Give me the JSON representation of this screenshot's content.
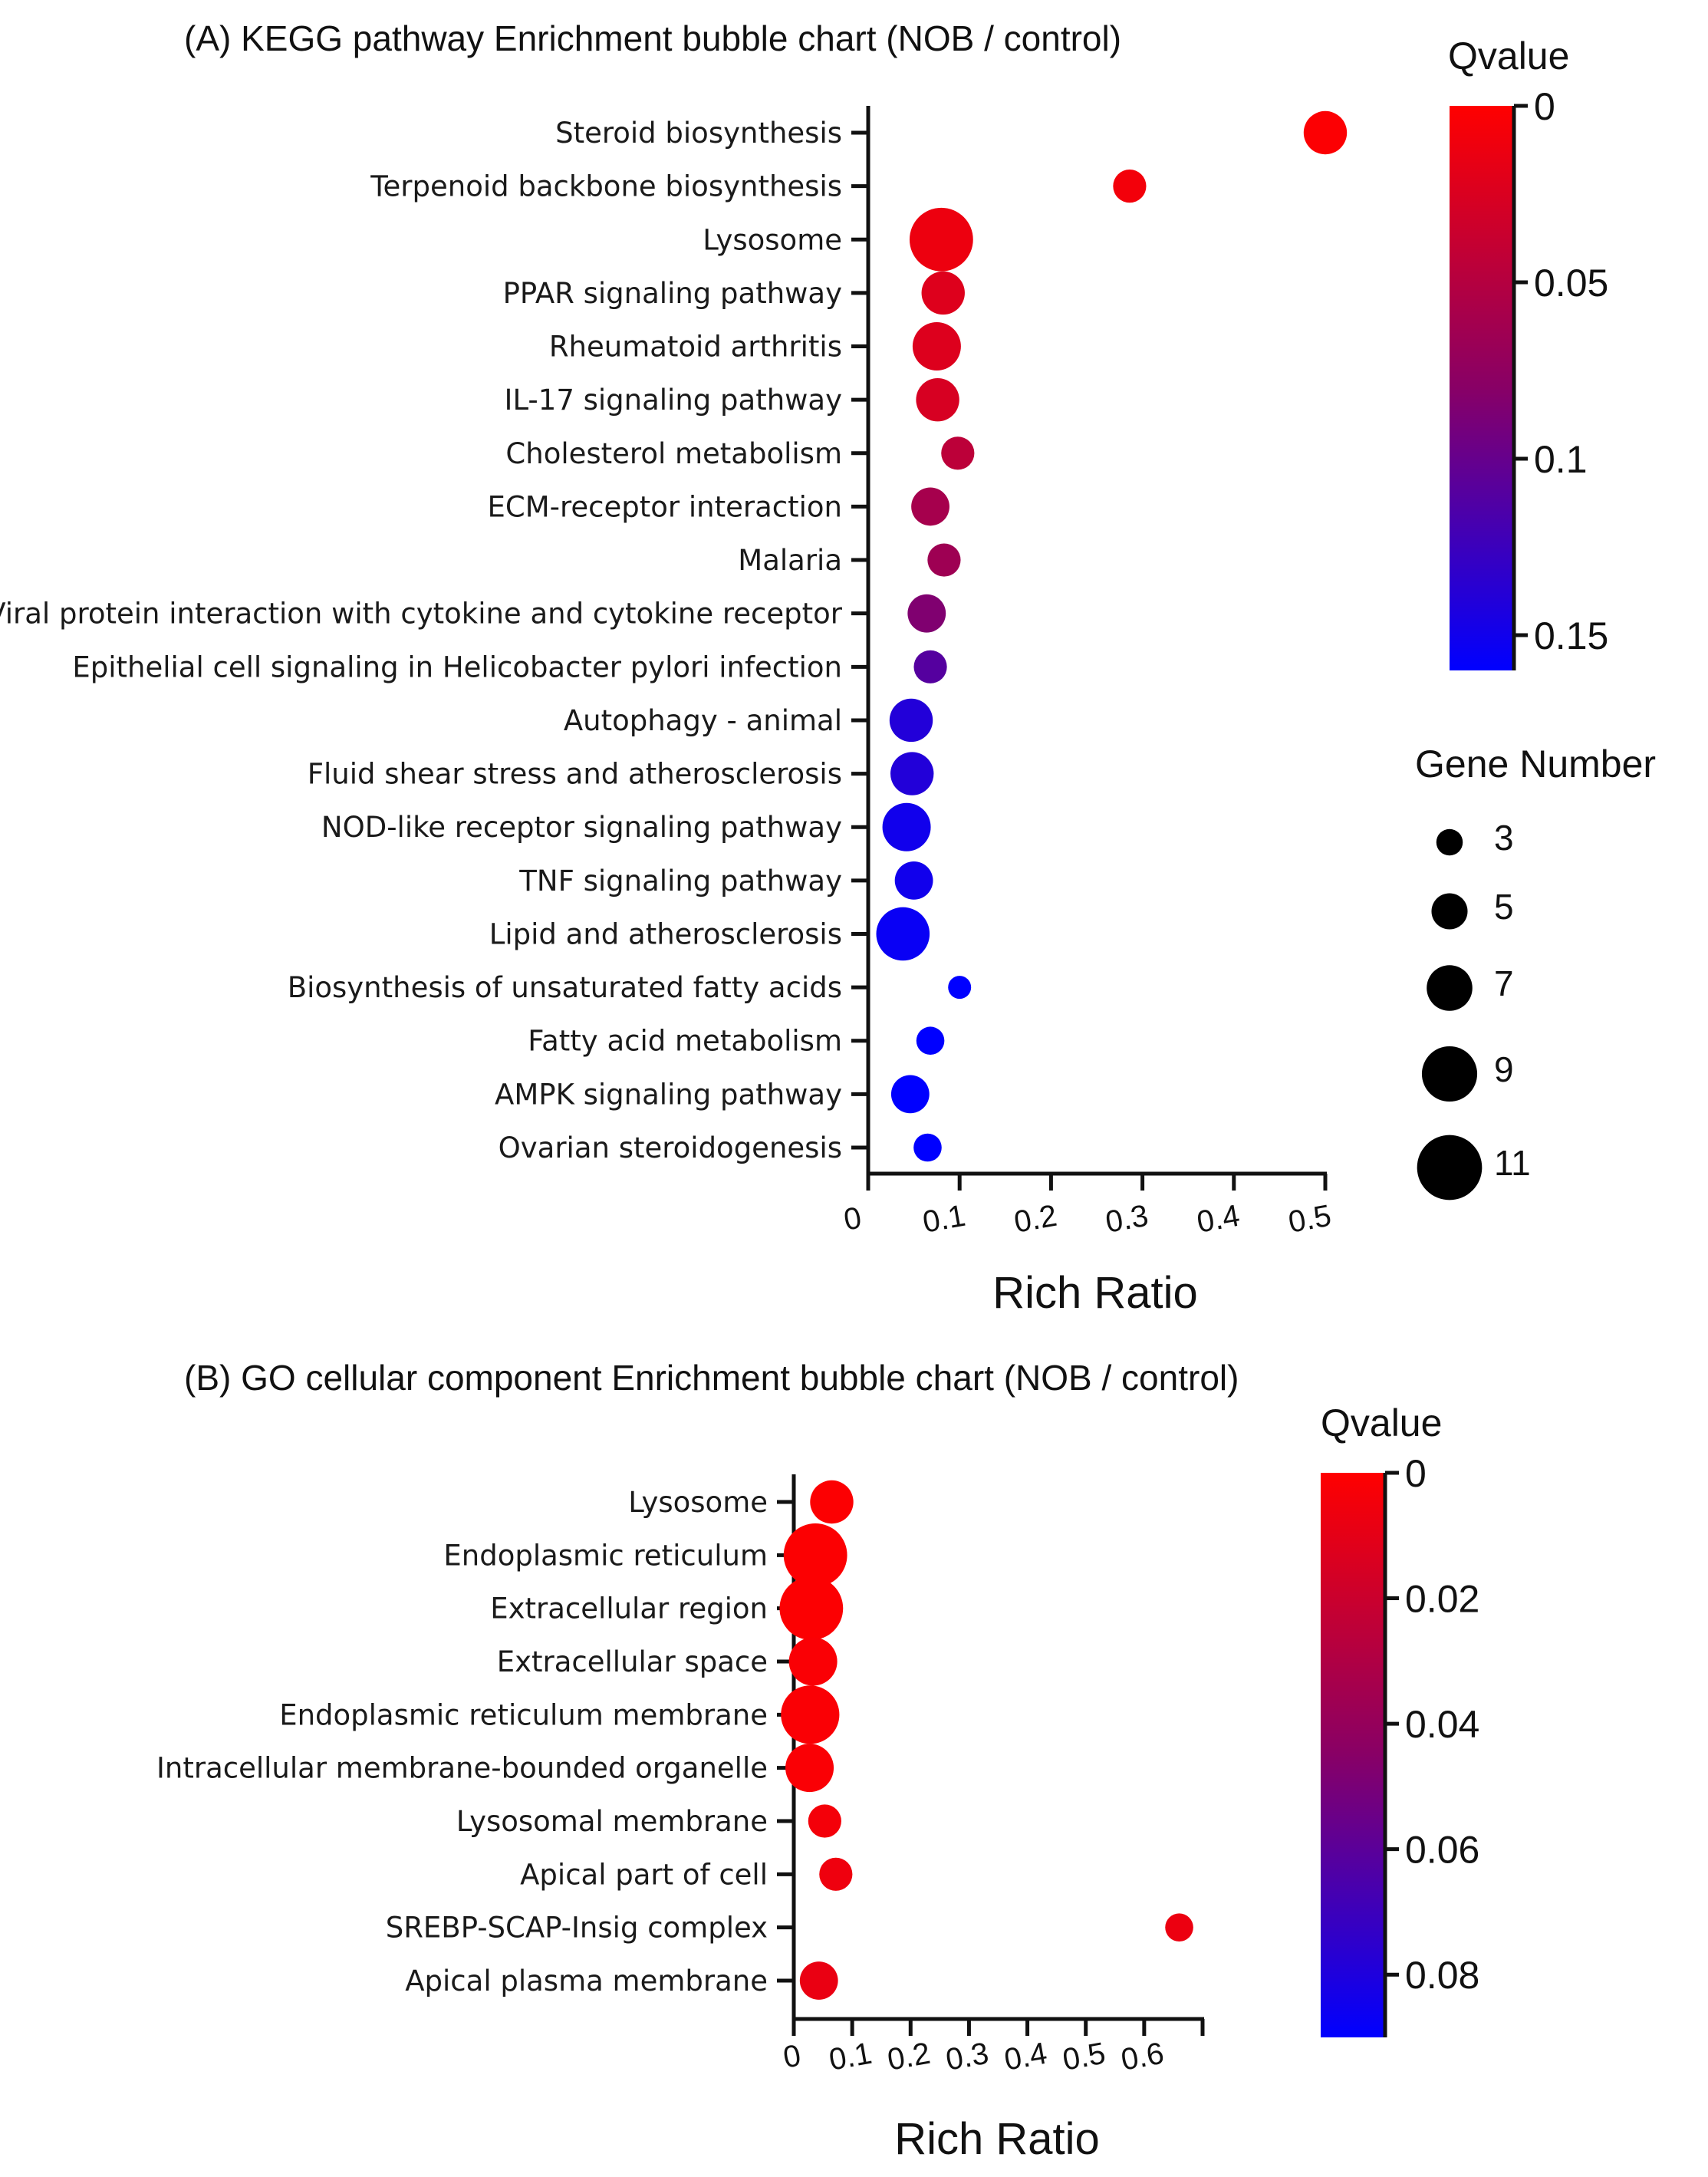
{
  "chart_data": [
    {
      "type": "scatter",
      "subtype": "bubble",
      "title": "(A) KEGG pathway Enrichment bubble chart (NOB / control)",
      "xlabel": "Rich Ratio",
      "ylabel": "",
      "xlim": [
        0,
        0.5
      ],
      "xticks": [
        "0",
        "0.1",
        "0.2",
        "0.3",
        "0.4",
        "0.5"
      ],
      "categories": [
        "Steroid biosynthesis",
        "Terpenoid backbone biosynthesis",
        "Lysosome",
        "PPAR signaling pathway",
        "Rheumatoid arthritis",
        "IL-17 signaling pathway",
        "Cholesterol metabolism",
        "ECM-receptor interaction",
        "Malaria",
        "Viral protein interaction with cytokine and cytokine receptor",
        "Epithelial cell signaling in Helicobacter pylori infection",
        "Autophagy - animal",
        "Fluid shear stress and atherosclerosis",
        "NOD-like receptor signaling pathway",
        "TNF signaling pathway",
        "Lipid and atherosclerosis",
        "Biosynthesis of unsaturated fatty acids",
        "Fatty acid metabolism",
        "AMPK signaling pathway",
        "Ovarian steroidogenesis"
      ],
      "rich_ratio": [
        0.5,
        0.286,
        0.08,
        0.082,
        0.075,
        0.076,
        0.098,
        0.068,
        0.083,
        0.064,
        0.068,
        0.047,
        0.048,
        0.042,
        0.05,
        0.038,
        0.1,
        0.068,
        0.046,
        0.065
      ],
      "qvalue": [
        0.002,
        0.008,
        0.012,
        0.022,
        0.023,
        0.027,
        0.045,
        0.06,
        0.065,
        0.085,
        0.11,
        0.14,
        0.14,
        0.15,
        0.15,
        0.155,
        0.16,
        0.16,
        0.16,
        0.16
      ],
      "gene_number": [
        7,
        5,
        11,
        7,
        8,
        7,
        5,
        6,
        5,
        6,
        5,
        7,
        7,
        8,
        6,
        9,
        3,
        4,
        6,
        4
      ],
      "colorbar": {
        "title": "Qvalue",
        "range": [
          0,
          0.16
        ],
        "ticks": [
          "0",
          "0.05",
          "0.1",
          "0.15"
        ],
        "tick_values": [
          0,
          0.05,
          0.1,
          0.15
        ],
        "color_low": "#ff0000",
        "color_high": "#0000ff"
      },
      "size_legend": {
        "title": "Gene Number",
        "values": [
          3,
          5,
          7,
          9,
          11
        ],
        "labels": [
          "3",
          "5",
          "7",
          "9",
          "11"
        ]
      }
    },
    {
      "type": "scatter",
      "subtype": "bubble",
      "title": "(B) GO cellular component  Enrichment bubble chart (NOB / control)",
      "xlabel": "Rich Ratio",
      "ylabel": "",
      "xlim": [
        0,
        0.7
      ],
      "xticks": [
        "0",
        "0.1",
        "0.2",
        "0.3",
        "0.4",
        "0.5",
        "0.6"
      ],
      "categories": [
        "Lysosome",
        "Endoplasmic reticulum",
        "Extracellular region",
        "Extracellular space",
        "Endoplasmic reticulum membrane",
        "Intracellular membrane-bounded organelle",
        "Lysosomal membrane",
        "Apical part of cell",
        "SREBP-SCAP-Insig complex",
        "Apical plasma membrane"
      ],
      "rich_ratio": [
        0.065,
        0.037,
        0.03,
        0.033,
        0.028,
        0.027,
        0.053,
        0.072,
        0.66,
        0.043
      ],
      "qvalue": [
        0.001,
        0.001,
        0.001,
        0.002,
        0.002,
        0.002,
        0.004,
        0.006,
        0.007,
        0.008
      ],
      "gene_number": [
        7,
        11,
        11,
        8,
        10,
        8,
        5,
        5,
        4,
        6
      ],
      "colorbar": {
        "title": "Qvalue",
        "range": [
          0,
          0.09
        ],
        "ticks": [
          "0",
          "0.02",
          "0.04",
          "0.06",
          "0.08"
        ],
        "tick_values": [
          0,
          0.02,
          0.04,
          0.06,
          0.08
        ],
        "color_low": "#ff0000",
        "color_high": "#0000ff"
      }
    }
  ]
}
